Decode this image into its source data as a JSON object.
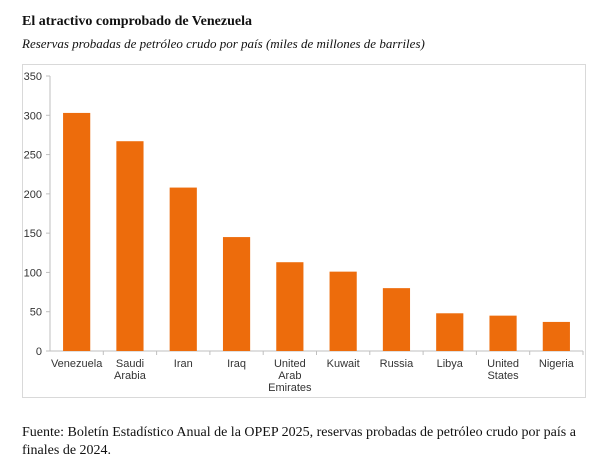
{
  "header": {
    "title": "El atractivo comprobado de Venezuela",
    "subtitle": "Reservas probadas de petróleo crudo por país (miles de millones de barriles)"
  },
  "footer": {
    "source": "Fuente: Boletín Estadístico Anual de la OPEP 2025, reservas probadas de petróleo crudo por país a finales de 2024."
  },
  "colors": {
    "bar": "#ED6C0C",
    "axis": "#bfbfbf",
    "text": "#333333"
  },
  "chart_data": {
    "type": "bar",
    "categories": [
      "Venezuela",
      "Saudi Arabia",
      "Iran",
      "Iraq",
      "United Arab Emirates",
      "Kuwait",
      "Russia",
      "Libya",
      "United States",
      "Nigeria"
    ],
    "category_lines": [
      [
        "Venezuela"
      ],
      [
        "Saudi",
        "Arabia"
      ],
      [
        "Iran"
      ],
      [
        "Iraq"
      ],
      [
        "United",
        "Arab",
        "Emirates"
      ],
      [
        "Kuwait"
      ],
      [
        "Russia"
      ],
      [
        "Libya"
      ],
      [
        "United",
        "States"
      ],
      [
        "Nigeria"
      ]
    ],
    "values": [
      303,
      267,
      208,
      145,
      113,
      101,
      80,
      48,
      45,
      37
    ],
    "ylim": [
      0,
      350
    ],
    "yticks": [
      0,
      50,
      100,
      150,
      200,
      250,
      300,
      350
    ],
    "grid": false,
    "legend": "none"
  }
}
